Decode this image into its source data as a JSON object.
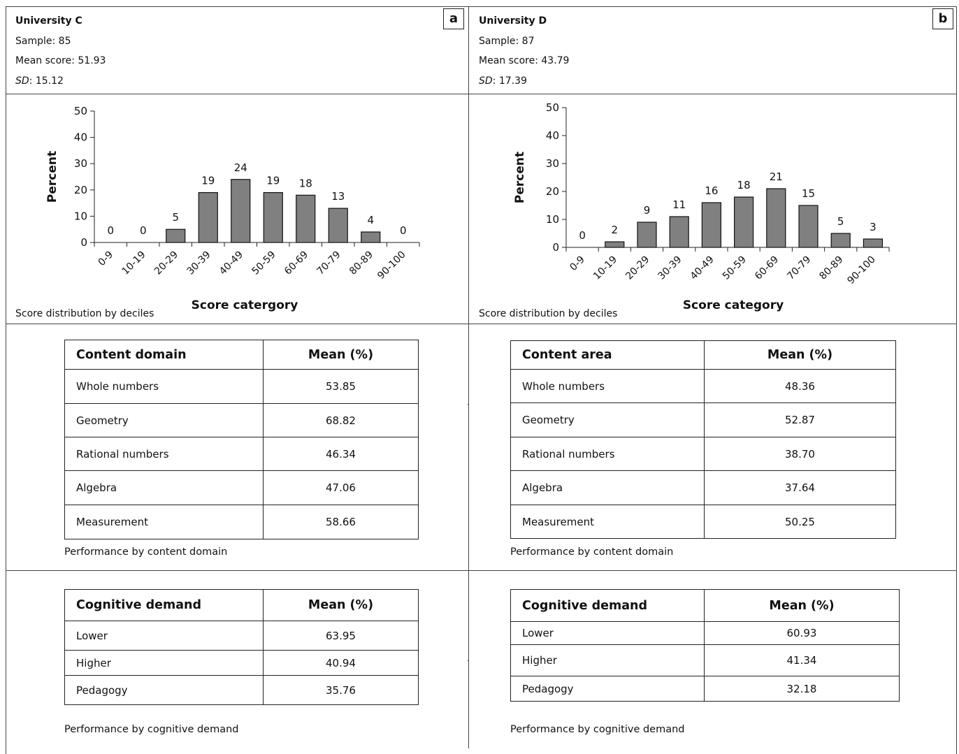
{
  "panels": [
    {
      "badge": "a",
      "name": "University C",
      "sample": "Sample: 85",
      "mean": "Mean score: 51.93",
      "sd_label": "SD",
      "sd_value": ": 15.12",
      "chart_caption": "Score distribution by deciles",
      "content_table": {
        "col1": "Content domain",
        "col2": "Mean (%)",
        "rows": [
          {
            "label": "Whole numbers",
            "value": "53.85"
          },
          {
            "label": "Geometry",
            "value": "68.82"
          },
          {
            "label": "Rational numbers",
            "value": "46.34"
          },
          {
            "label": "Algebra",
            "value": "47.06"
          },
          {
            "label": "Measurement",
            "value": "58.66"
          }
        ],
        "caption": "Performance by content domain"
      },
      "cognitive_table": {
        "col1": "Cognitive demand",
        "col2": "Mean (%)",
        "rows": [
          {
            "label": "Lower",
            "value": "63.95"
          },
          {
            "label": "Higher",
            "value": "40.94"
          },
          {
            "label": "Pedagogy",
            "value": "35.76"
          }
        ],
        "caption": "Performance by cognitive demand"
      }
    },
    {
      "badge": "b",
      "name": "University D",
      "sample": "Sample: 87",
      "mean": "Mean score: 43.79",
      "sd_label": "SD",
      "sd_value": ": 17.39",
      "chart_caption": "Score distribution by deciles",
      "content_table": {
        "col1": "Content area",
        "col2": "Mean (%)",
        "rows": [
          {
            "label": "Whole numbers",
            "value": "48.36"
          },
          {
            "label": "Geometry",
            "value": "52.87"
          },
          {
            "label": "Rational numbers",
            "value": "38.70"
          },
          {
            "label": "Algebra",
            "value": "37.64"
          },
          {
            "label": "Measurement",
            "value": "50.25"
          }
        ],
        "caption": "Performance by content domain"
      },
      "cognitive_table": {
        "col1": "Cognitive demand",
        "col2": "Mean (%)",
        "rows": [
          {
            "label": "Lower",
            "value": "60.93"
          },
          {
            "label": "Higher",
            "value": "41.34"
          },
          {
            "label": "Pedagogy",
            "value": "32.18"
          }
        ],
        "caption": "Performance by cognitive demand"
      }
    }
  ],
  "chart_data": [
    {
      "type": "bar",
      "title": "",
      "xlabel": "Score catergory",
      "ylabel": "Percent",
      "ylim": [
        0,
        50
      ],
      "yticks": [
        0,
        10,
        20,
        30,
        40,
        50
      ],
      "categories": [
        "0-9",
        "10-19",
        "20-29",
        "30-39",
        "40-49",
        "50-59",
        "60-69",
        "70-79",
        "80-89",
        "90-100"
      ],
      "values": [
        0,
        0,
        5,
        19,
        24,
        19,
        18,
        13,
        4,
        0
      ],
      "bar_color": "#808080",
      "grid": false
    },
    {
      "type": "bar",
      "title": "",
      "xlabel": "Score category",
      "ylabel": "Percent",
      "ylim": [
        0,
        50
      ],
      "yticks": [
        0,
        10,
        20,
        30,
        40,
        50
      ],
      "categories": [
        "0-9",
        "10-19",
        "20-29",
        "30-39",
        "40-49",
        "50-59",
        "60-69",
        "70-79",
        "80-89",
        "90-100"
      ],
      "values": [
        0,
        2,
        9,
        11,
        16,
        18,
        21,
        15,
        5,
        3
      ],
      "bar_color": "#808080",
      "grid": false
    }
  ]
}
